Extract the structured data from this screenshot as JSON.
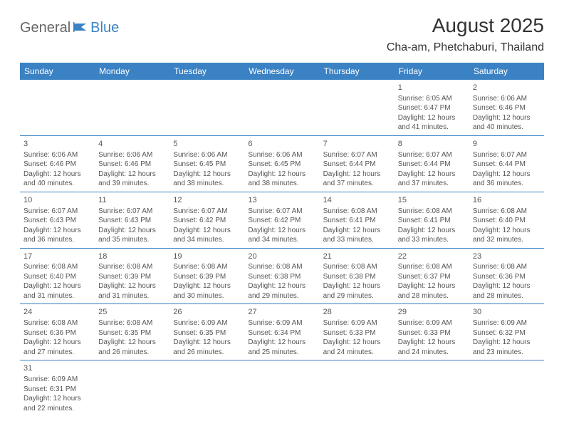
{
  "logo": {
    "text1": "General",
    "text2": "Blue"
  },
  "title": "August 2025",
  "location": "Cha-am, Phetchaburi, Thailand",
  "colors": {
    "header_bg": "#3b82c4",
    "header_text": "#ffffff",
    "cell_text": "#555555",
    "border": "#3b82c4",
    "logo_gray": "#666666",
    "logo_blue": "#3b82c4"
  },
  "dayHeaders": [
    "Sunday",
    "Monday",
    "Tuesday",
    "Wednesday",
    "Thursday",
    "Friday",
    "Saturday"
  ],
  "weeks": [
    [
      null,
      null,
      null,
      null,
      null,
      {
        "d": "1",
        "sunrise": "6:05 AM",
        "sunset": "6:47 PM",
        "daylight": "12 hours and 41 minutes."
      },
      {
        "d": "2",
        "sunrise": "6:06 AM",
        "sunset": "6:46 PM",
        "daylight": "12 hours and 40 minutes."
      }
    ],
    [
      {
        "d": "3",
        "sunrise": "6:06 AM",
        "sunset": "6:46 PM",
        "daylight": "12 hours and 40 minutes."
      },
      {
        "d": "4",
        "sunrise": "6:06 AM",
        "sunset": "6:46 PM",
        "daylight": "12 hours and 39 minutes."
      },
      {
        "d": "5",
        "sunrise": "6:06 AM",
        "sunset": "6:45 PM",
        "daylight": "12 hours and 38 minutes."
      },
      {
        "d": "6",
        "sunrise": "6:06 AM",
        "sunset": "6:45 PM",
        "daylight": "12 hours and 38 minutes."
      },
      {
        "d": "7",
        "sunrise": "6:07 AM",
        "sunset": "6:44 PM",
        "daylight": "12 hours and 37 minutes."
      },
      {
        "d": "8",
        "sunrise": "6:07 AM",
        "sunset": "6:44 PM",
        "daylight": "12 hours and 37 minutes."
      },
      {
        "d": "9",
        "sunrise": "6:07 AM",
        "sunset": "6:44 PM",
        "daylight": "12 hours and 36 minutes."
      }
    ],
    [
      {
        "d": "10",
        "sunrise": "6:07 AM",
        "sunset": "6:43 PM",
        "daylight": "12 hours and 36 minutes."
      },
      {
        "d": "11",
        "sunrise": "6:07 AM",
        "sunset": "6:43 PM",
        "daylight": "12 hours and 35 minutes."
      },
      {
        "d": "12",
        "sunrise": "6:07 AM",
        "sunset": "6:42 PM",
        "daylight": "12 hours and 34 minutes."
      },
      {
        "d": "13",
        "sunrise": "6:07 AM",
        "sunset": "6:42 PM",
        "daylight": "12 hours and 34 minutes."
      },
      {
        "d": "14",
        "sunrise": "6:08 AM",
        "sunset": "6:41 PM",
        "daylight": "12 hours and 33 minutes."
      },
      {
        "d": "15",
        "sunrise": "6:08 AM",
        "sunset": "6:41 PM",
        "daylight": "12 hours and 33 minutes."
      },
      {
        "d": "16",
        "sunrise": "6:08 AM",
        "sunset": "6:40 PM",
        "daylight": "12 hours and 32 minutes."
      }
    ],
    [
      {
        "d": "17",
        "sunrise": "6:08 AM",
        "sunset": "6:40 PM",
        "daylight": "12 hours and 31 minutes."
      },
      {
        "d": "18",
        "sunrise": "6:08 AM",
        "sunset": "6:39 PM",
        "daylight": "12 hours and 31 minutes."
      },
      {
        "d": "19",
        "sunrise": "6:08 AM",
        "sunset": "6:39 PM",
        "daylight": "12 hours and 30 minutes."
      },
      {
        "d": "20",
        "sunrise": "6:08 AM",
        "sunset": "6:38 PM",
        "daylight": "12 hours and 29 minutes."
      },
      {
        "d": "21",
        "sunrise": "6:08 AM",
        "sunset": "6:38 PM",
        "daylight": "12 hours and 29 minutes."
      },
      {
        "d": "22",
        "sunrise": "6:08 AM",
        "sunset": "6:37 PM",
        "daylight": "12 hours and 28 minutes."
      },
      {
        "d": "23",
        "sunrise": "6:08 AM",
        "sunset": "6:36 PM",
        "daylight": "12 hours and 28 minutes."
      }
    ],
    [
      {
        "d": "24",
        "sunrise": "6:08 AM",
        "sunset": "6:36 PM",
        "daylight": "12 hours and 27 minutes."
      },
      {
        "d": "25",
        "sunrise": "6:08 AM",
        "sunset": "6:35 PM",
        "daylight": "12 hours and 26 minutes."
      },
      {
        "d": "26",
        "sunrise": "6:09 AM",
        "sunset": "6:35 PM",
        "daylight": "12 hours and 26 minutes."
      },
      {
        "d": "27",
        "sunrise": "6:09 AM",
        "sunset": "6:34 PM",
        "daylight": "12 hours and 25 minutes."
      },
      {
        "d": "28",
        "sunrise": "6:09 AM",
        "sunset": "6:33 PM",
        "daylight": "12 hours and 24 minutes."
      },
      {
        "d": "29",
        "sunrise": "6:09 AM",
        "sunset": "6:33 PM",
        "daylight": "12 hours and 24 minutes."
      },
      {
        "d": "30",
        "sunrise": "6:09 AM",
        "sunset": "6:32 PM",
        "daylight": "12 hours and 23 minutes."
      }
    ],
    [
      {
        "d": "31",
        "sunrise": "6:09 AM",
        "sunset": "6:31 PM",
        "daylight": "12 hours and 22 minutes."
      },
      null,
      null,
      null,
      null,
      null,
      null
    ]
  ],
  "labels": {
    "sunrise": "Sunrise:",
    "sunset": "Sunset:",
    "daylight": "Daylight:"
  }
}
